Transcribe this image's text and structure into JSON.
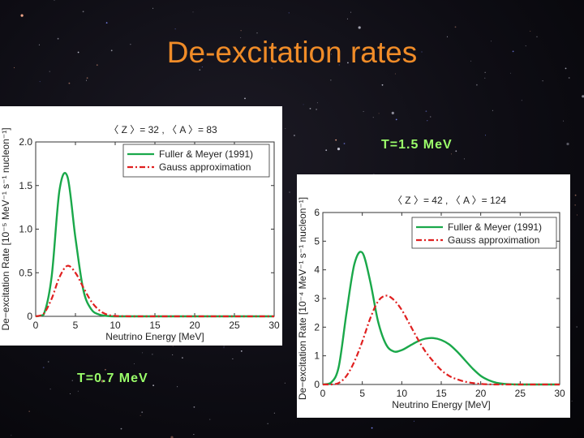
{
  "slide": {
    "title": "De-excitation rates"
  },
  "colors": {
    "title": "#f08c28",
    "temperature_label": "#9bff6a",
    "series_fuller": "#1aa84a",
    "series_gauss": "#e02020"
  },
  "chart_data": [
    {
      "type": "line",
      "title": "〈 Z 〉= 32 , 〈 A 〉= 83",
      "temperature_label": "T=0.7 MeV",
      "xlabel": "Neutrino Energy [MeV]",
      "ylabel": "De−excitation Rate [10⁻⁵ MeV⁻¹ s⁻¹ nucleon⁻¹]",
      "xlim": [
        0,
        30
      ],
      "ylim": [
        0,
        2.0
      ],
      "x_ticks": [
        "0",
        "5",
        "10",
        "15",
        "20",
        "25",
        "30"
      ],
      "y_ticks": [
        "0",
        "0.5",
        "1.0",
        "1.5",
        "2.0"
      ],
      "legend_position": "top-right",
      "grid": false,
      "x": [
        0,
        1,
        2,
        3,
        4,
        5,
        6,
        7,
        8,
        9,
        10,
        12,
        15,
        20,
        25,
        30
      ],
      "series": [
        {
          "name": "Fuller & Meyer (1991)",
          "style": "solid",
          "values": [
            0,
            0.02,
            0.45,
            1.45,
            1.6,
            0.9,
            0.3,
            0.08,
            0.02,
            0.005,
            0,
            0,
            0,
            0,
            0,
            0
          ]
        },
        {
          "name": "Gauss approximation",
          "style": "dash-dot",
          "values": [
            0,
            0.03,
            0.2,
            0.45,
            0.58,
            0.5,
            0.33,
            0.17,
            0.07,
            0.02,
            0.005,
            0,
            0,
            0,
            0,
            0
          ]
        }
      ]
    },
    {
      "type": "line",
      "title": "〈 Z 〉= 42 , 〈 A 〉= 124",
      "temperature_label": "T=1.5 MeV",
      "xlabel": "Neutrino Energy [MeV]",
      "ylabel": "De−excitation Rate [10⁻⁴ MeV⁻¹ s⁻¹ nucleon⁻¹]",
      "xlim": [
        0,
        30
      ],
      "ylim": [
        0,
        6
      ],
      "x_ticks": [
        "0",
        "5",
        "10",
        "15",
        "20",
        "25",
        "30"
      ],
      "y_ticks": [
        "0",
        "1",
        "2",
        "3",
        "4",
        "5",
        "6"
      ],
      "legend_position": "top-right",
      "grid": false,
      "x": [
        0,
        1,
        2,
        3,
        4,
        5,
        6,
        7,
        8,
        9,
        10,
        11,
        12,
        13,
        14,
        15,
        16,
        17,
        18,
        19,
        20,
        21,
        22,
        23,
        24,
        25,
        26,
        30
      ],
      "series": [
        {
          "name": "Fuller & Meyer (1991)",
          "style": "solid",
          "values": [
            0,
            0.05,
            0.6,
            2.5,
            4.2,
            4.6,
            3.6,
            2.2,
            1.4,
            1.15,
            1.2,
            1.35,
            1.5,
            1.6,
            1.62,
            1.55,
            1.4,
            1.15,
            0.85,
            0.55,
            0.3,
            0.15,
            0.06,
            0.02,
            0.005,
            0,
            0,
            0
          ]
        },
        {
          "name": "Gauss approximation",
          "style": "dash-dot",
          "values": [
            0,
            0,
            0.05,
            0.3,
            0.8,
            1.5,
            2.3,
            2.9,
            3.1,
            2.95,
            2.6,
            2.1,
            1.6,
            1.15,
            0.8,
            0.5,
            0.3,
            0.18,
            0.1,
            0.05,
            0.02,
            0.005,
            0,
            0,
            0,
            0,
            0,
            0
          ]
        }
      ]
    }
  ]
}
